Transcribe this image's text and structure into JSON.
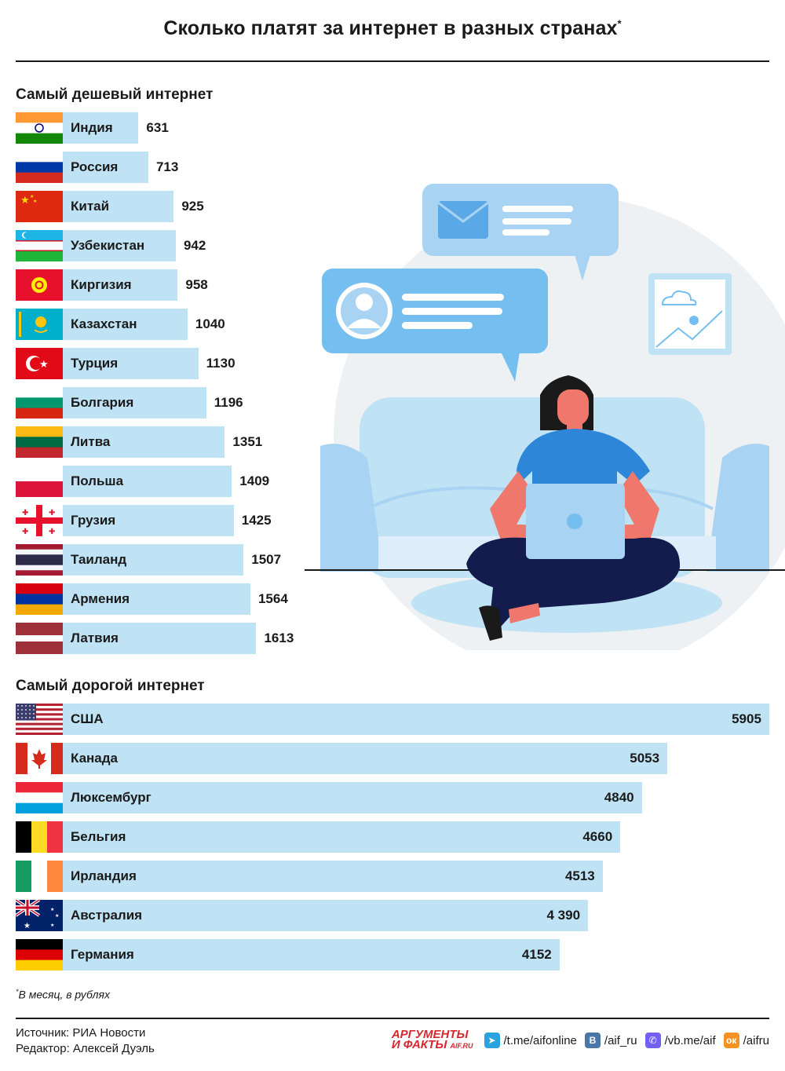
{
  "title": "Сколько платят за интернет в разных странах",
  "title_mark": "*",
  "colors": {
    "bar": "#bfe3f4",
    "text": "#1a1a1a",
    "accent": "#d7262d"
  },
  "chart_data": [
    {
      "type": "bar",
      "orientation": "horizontal",
      "title": "Самый дешевый интернет",
      "categories": [
        "Индия",
        "Россия",
        "Китай",
        "Узбекистан",
        "Киргизия",
        "Казахстан",
        "Турция",
        "Болгария",
        "Литва",
        "Польша",
        "Грузия",
        "Таиланд",
        "Армения",
        "Латвия"
      ],
      "values": [
        631,
        713,
        925,
        942,
        958,
        1040,
        1130,
        1196,
        1351,
        1409,
        1425,
        1507,
        1564,
        1613
      ],
      "labels": [
        "631",
        "713",
        "925",
        "942",
        "958",
        "1040",
        "1130",
        "1196",
        "1351",
        "1409",
        "1425",
        "1507",
        "1564",
        "1613"
      ],
      "flags": [
        "india",
        "russia",
        "china",
        "uzbekistan",
        "kyrgyzstan",
        "kazakhstan",
        "turkey",
        "bulgaria",
        "lithuania",
        "poland",
        "georgia",
        "thailand",
        "armenia",
        "latvia"
      ]
    },
    {
      "type": "bar",
      "orientation": "horizontal",
      "title": "Самый дорогой интернет",
      "categories": [
        "США",
        "Канада",
        "Люксембург",
        "Бельгия",
        "Ирландия",
        "Австралия",
        "Германия"
      ],
      "values": [
        5905,
        5053,
        4840,
        4660,
        4513,
        4390,
        4152
      ],
      "labels": [
        "5905",
        "5053",
        "4840",
        "4660",
        "4513",
        "4 390",
        "4152"
      ],
      "flags": [
        "usa",
        "canada",
        "luxembourg",
        "belgium",
        "ireland",
        "australia",
        "germany"
      ]
    }
  ],
  "footnote_mark": "*",
  "footnote": "В месяц, в рублях",
  "source": "Источник: РИА Новости",
  "editor": "Редактор: Алексей Дуэль",
  "logo": {
    "line1": "АРГУМЕНТЫ",
    "line2": "И ФАКТЫ",
    "site": "AIF.RU"
  },
  "social": [
    {
      "icon": "telegram-icon",
      "text": "/t.me/aifonline",
      "color": "#2aa3de",
      "glyph": "➤"
    },
    {
      "icon": "vk-icon",
      "text": "/aif_ru",
      "color": "#4a76a8",
      "glyph": "В"
    },
    {
      "icon": "viber-icon",
      "text": "/vb.me/aif",
      "color": "#7360f2",
      "glyph": "✆"
    },
    {
      "icon": "odnoklassniki-icon",
      "text": "/aifru",
      "color": "#f59222",
      "glyph": "ок"
    }
  ]
}
